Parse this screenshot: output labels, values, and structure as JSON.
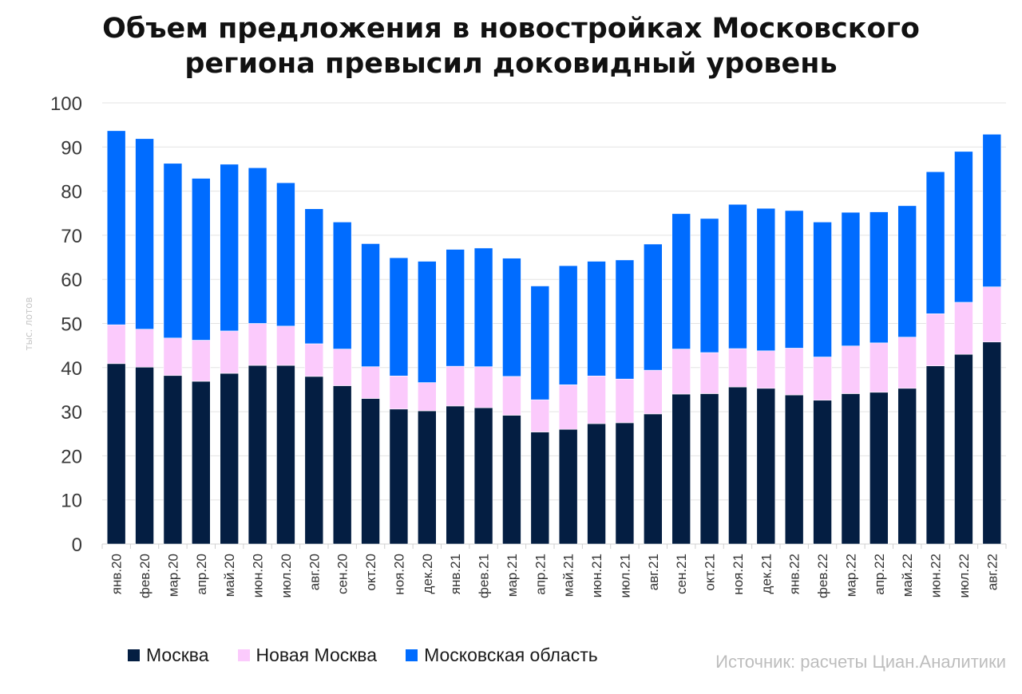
{
  "chart_data": {
    "type": "bar",
    "stacked": true,
    "title_lines": [
      "Объем предложения в новостройках Московского",
      "региона превысил доковидный уровень"
    ],
    "ylabel": "тыс. лотов",
    "xlabel": "",
    "ylim": [
      0,
      100
    ],
    "yticks": [
      0,
      10,
      20,
      30,
      40,
      50,
      60,
      70,
      80,
      90,
      100
    ],
    "grid": true,
    "legend_position": "bottom-left",
    "categories": [
      "янв.20",
      "фев.20",
      "мар.20",
      "апр.20",
      "май.20",
      "июн.20",
      "июл.20",
      "авг.20",
      "сен.20",
      "окт.20",
      "ноя.20",
      "дек.20",
      "янв.21",
      "фев.21",
      "мар.21",
      "апр.21",
      "май.21",
      "июн.21",
      "июл.21",
      "авг.21",
      "сен.21",
      "окт.21",
      "ноя.21",
      "дек.21",
      "янв.22",
      "фев.22",
      "мар.22",
      "апр.22",
      "май.22",
      "июн.22",
      "июл.22",
      "авг.22"
    ],
    "series": [
      {
        "name": "Москва",
        "color": "#041e42",
        "values": [
          40.9,
          40.1,
          38.2,
          36.9,
          38.7,
          40.5,
          40.5,
          38.0,
          35.9,
          33.0,
          30.6,
          30.2,
          31.3,
          30.9,
          29.2,
          25.4,
          26.0,
          27.3,
          27.5,
          29.5,
          34.0,
          34.1,
          35.6,
          35.3,
          33.8,
          32.6,
          34.1,
          34.4,
          35.3,
          40.4,
          43.0,
          45.8
        ]
      },
      {
        "name": "Новая Москва",
        "color": "#fbcafc",
        "values": [
          8.8,
          8.6,
          8.5,
          9.3,
          9.6,
          9.5,
          8.9,
          7.4,
          8.3,
          7.2,
          7.5,
          6.4,
          9.0,
          9.3,
          8.8,
          7.3,
          10.1,
          10.8,
          9.9,
          9.9,
          10.2,
          9.3,
          8.7,
          8.5,
          10.6,
          9.8,
          10.8,
          11.2,
          11.6,
          11.8,
          11.8,
          12.5
        ]
      },
      {
        "name": "Московская область",
        "color": "#006cff",
        "values": [
          44.0,
          43.2,
          39.6,
          36.7,
          37.8,
          35.3,
          32.5,
          30.6,
          28.8,
          27.9,
          26.8,
          27.5,
          26.5,
          26.9,
          26.8,
          25.8,
          27.0,
          26.0,
          27.0,
          28.6,
          30.7,
          30.4,
          32.7,
          32.3,
          31.2,
          30.6,
          30.3,
          29.7,
          29.8,
          32.2,
          34.2,
          34.6
        ]
      }
    ],
    "source": "Источник: расчеты Циан.Аналитики"
  }
}
